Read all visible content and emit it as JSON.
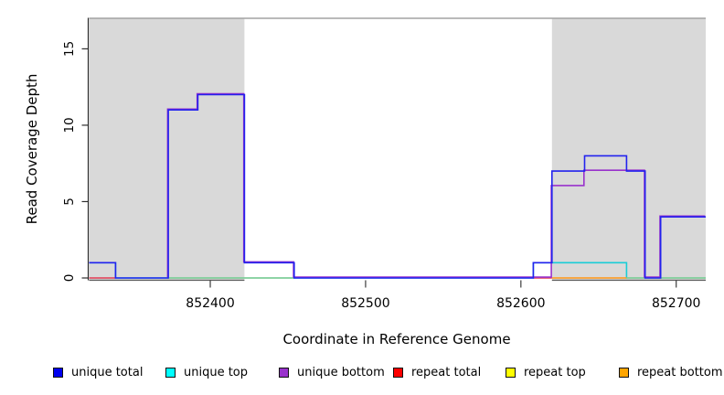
{
  "chart_data": {
    "type": "line",
    "subtype": "step-read-coverage",
    "title": "",
    "xlabel": "Coordinate in Reference Genome",
    "ylabel": "Read Coverage Depth",
    "xlim": [
      852322,
      852719
    ],
    "ylim": [
      0,
      17
    ],
    "x_ticks": [
      852400,
      852500,
      852600,
      852700
    ],
    "y_ticks": [
      0,
      5,
      10,
      15
    ],
    "grid": false,
    "legend_position": "bottom",
    "shaded_regions": {
      "color": "#d9d9d9",
      "bottom_edge_color": "#5a5a5a",
      "ranges": [
        [
          852322,
          852422
        ],
        [
          852620,
          852719
        ]
      ]
    },
    "top_boundary_line": {
      "color": "#a3a3a3",
      "y": 17
    },
    "series": [
      {
        "name": "unique top",
        "color": "#19cdd6",
        "style": "steps",
        "points": [
          [
            852322,
            1
          ],
          [
            852339,
            0
          ],
          [
            852608,
            1
          ],
          [
            852668,
            0
          ]
        ]
      },
      {
        "name": "zero baseline (unlabeled)",
        "color": "#8fcd8f",
        "style": "segments",
        "value": 0,
        "segments": [
          [
            852372,
            852454
          ],
          [
            852668,
            852719
          ]
        ]
      },
      {
        "name": "repeat total",
        "color": "#e23b52",
        "style": "segments",
        "value": 0,
        "segments": [
          [
            852322,
            852339
          ],
          [
            852608,
            852620
          ]
        ]
      },
      {
        "name": "repeat bottom",
        "color": "#ff9514",
        "style": "segments",
        "value": 0,
        "segments": [
          [
            852620,
            852668
          ]
        ]
      },
      {
        "name": "repeat top",
        "color": "#f2e400",
        "style": "segments",
        "value": 0,
        "segments": []
      },
      {
        "name": "unique bottom",
        "color": "#9932cc",
        "style": "steps",
        "offset": [
          -0.7,
          -0.9
        ],
        "points": [
          [
            852373,
            0
          ],
          [
            852373,
            11
          ],
          [
            852392,
            12
          ],
          [
            852422,
            1
          ],
          [
            852454,
            0
          ],
          [
            852620,
            6
          ],
          [
            852641,
            7
          ],
          [
            852680,
            0
          ],
          [
            852690,
            4
          ]
        ]
      },
      {
        "name": "unique total",
        "color": "#2222ee",
        "style": "steps",
        "points": [
          [
            852322,
            1
          ],
          [
            852339,
            0
          ],
          [
            852373,
            11
          ],
          [
            852392,
            12
          ],
          [
            852422,
            1
          ],
          [
            852454,
            0
          ],
          [
            852608,
            1
          ],
          [
            852620,
            7
          ],
          [
            852641,
            8
          ],
          [
            852668,
            7
          ],
          [
            852680,
            0
          ],
          [
            852690,
            4
          ]
        ]
      }
    ]
  },
  "legend": {
    "items": [
      {
        "label": "unique total",
        "color": "#0000ee"
      },
      {
        "label": "unique top",
        "color": "#00ffff"
      },
      {
        "label": "unique bottom",
        "color": "#9932cc"
      },
      {
        "label": "repeat total",
        "color": "#ff0000"
      },
      {
        "label": "repeat top",
        "color": "#ffff00"
      },
      {
        "label": "repeat bottom",
        "color": "#ffa500"
      }
    ]
  }
}
